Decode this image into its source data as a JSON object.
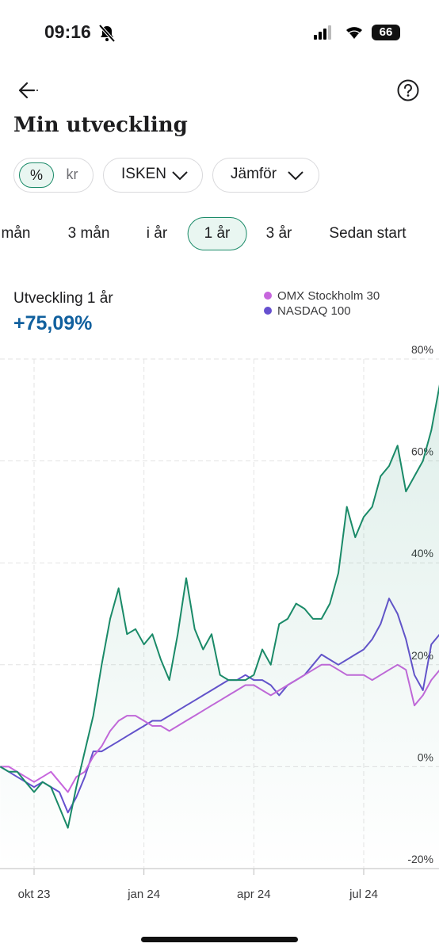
{
  "status_bar": {
    "time": "09:16",
    "battery": "66"
  },
  "header": {
    "title": "Min utveckling"
  },
  "filters": {
    "unit_options": [
      "%",
      "kr"
    ],
    "unit_selected_index": 0,
    "account": "ISKEN",
    "compare": "Jämför"
  },
  "periods": {
    "options": [
      "mån",
      "3 mån",
      "i år",
      "1 år",
      "3 år",
      "Sedan start"
    ],
    "selected_index": 3
  },
  "summary": {
    "label": "Utveckling 1 år",
    "value": "+75,09%"
  },
  "chart_data": {
    "type": "line",
    "categories": [
      null,
      null,
      null,
      null,
      "okt 23",
      null,
      null,
      null,
      null,
      null,
      null,
      null,
      null,
      null,
      null,
      null,
      null,
      "jan 24",
      null,
      null,
      null,
      null,
      null,
      null,
      null,
      null,
      null,
      null,
      null,
      null,
      "apr 24",
      null,
      null,
      null,
      null,
      null,
      null,
      null,
      null,
      null,
      null,
      null,
      null,
      "jul 24",
      null,
      null,
      null,
      null,
      null,
      null,
      null,
      null,
      null
    ],
    "series": [
      {
        "color": "#1a8a68",
        "values": [
          0,
          -1,
          -1,
          -3,
          -5,
          -3,
          -4,
          -8,
          -12,
          -4,
          3,
          10,
          20,
          29,
          35,
          26,
          27,
          24,
          26,
          21,
          17,
          26,
          37,
          27,
          23,
          26,
          18,
          17,
          17,
          17,
          18,
          23,
          20,
          28,
          29,
          32,
          31,
          29,
          29,
          32,
          38,
          51,
          45,
          49,
          51,
          57,
          59,
          63,
          54,
          57,
          60,
          66,
          75
        ]
      },
      {
        "name": "OMX Stockholm 30",
        "color": "#c766dd",
        "values": [
          0,
          0,
          -1,
          -2,
          -3,
          -2,
          -1,
          -3,
          -5,
          -2,
          -1,
          2,
          4,
          7,
          9,
          10,
          10,
          9,
          8,
          8,
          7,
          8,
          9,
          10,
          11,
          12,
          13,
          14,
          15,
          16,
          16,
          15,
          14,
          15,
          16,
          17,
          18,
          19,
          20,
          20,
          19,
          18,
          18,
          18,
          17,
          18,
          19,
          20,
          19,
          12,
          14,
          17,
          19
        ]
      },
      {
        "name": "NASDAQ 100",
        "color": "#6650cf",
        "values": [
          0,
          -1,
          -2,
          -3,
          -4,
          -3,
          -4,
          -5,
          -9,
          -6,
          -2,
          3,
          3,
          4,
          5,
          6,
          7,
          8,
          9,
          9,
          10,
          11,
          12,
          13,
          14,
          15,
          16,
          17,
          17,
          18,
          17,
          17,
          16,
          14,
          16,
          17,
          18,
          20,
          22,
          21,
          20,
          21,
          22,
          23,
          25,
          28,
          33,
          30,
          25,
          18,
          15,
          24,
          26
        ]
      }
    ],
    "ylim": [
      -20,
      80
    ],
    "yticks": [
      {
        "value": -20,
        "label": "-20%"
      },
      {
        "value": 0,
        "label": "0%"
      },
      {
        "value": 20,
        "label": "20%"
      },
      {
        "value": 40,
        "label": "40%"
      },
      {
        "value": 60,
        "label": "60%"
      },
      {
        "value": 80,
        "label": "80%"
      }
    ],
    "grid": true,
    "legend": "top-right"
  }
}
